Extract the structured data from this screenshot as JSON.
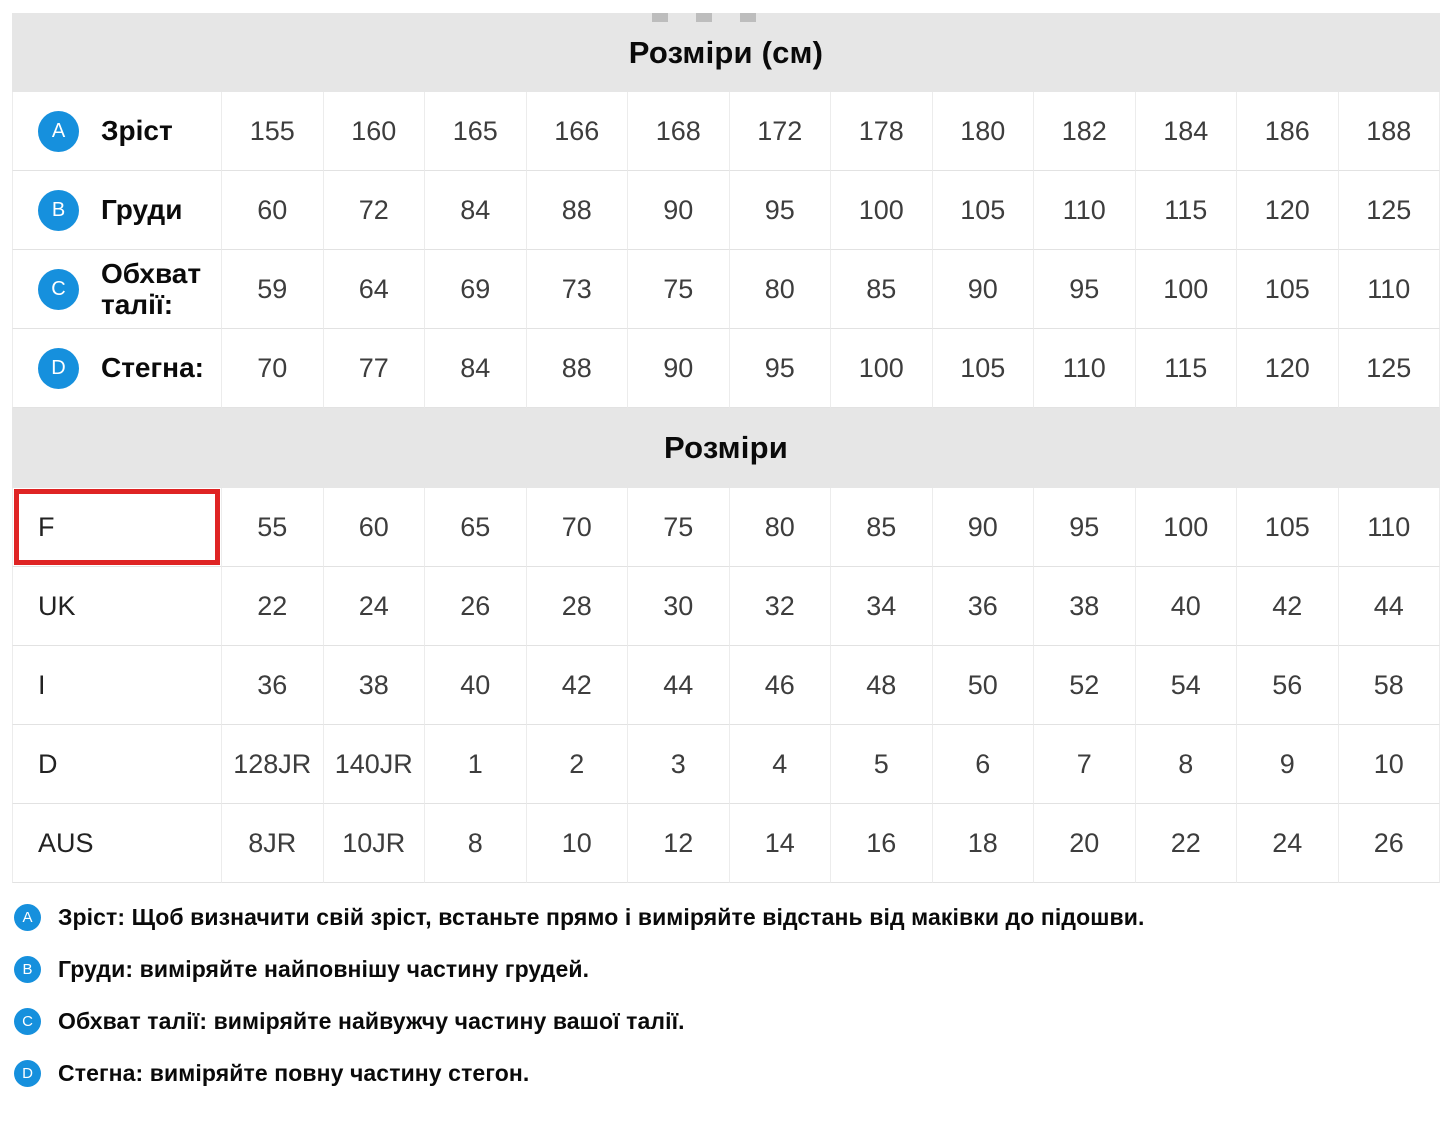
{
  "colors": {
    "badge_blue": "#1690dd",
    "highlight_red": "#df2424",
    "header_bg": "#e6e6e6",
    "grid_line": "#e2e2e2",
    "grid_line_v": "#ececec",
    "num_color": "#3d3d3d",
    "label_color": "#0b0b0b"
  },
  "tables": [
    {
      "title": "Розміри (см)",
      "rows": [
        {
          "badge": "A",
          "label": "Зріст",
          "values": [
            "155",
            "160",
            "165",
            "166",
            "168",
            "172",
            "178",
            "180",
            "182",
            "184",
            "186",
            "188"
          ]
        },
        {
          "badge": "B",
          "label": "Груди",
          "values": [
            "60",
            "72",
            "84",
            "88",
            "90",
            "95",
            "100",
            "105",
            "110",
            "115",
            "120",
            "125"
          ]
        },
        {
          "badge": "C",
          "label": "Обхват талії:",
          "values": [
            "59",
            "64",
            "69",
            "73",
            "75",
            "80",
            "85",
            "90",
            "95",
            "100",
            "105",
            "110"
          ]
        },
        {
          "badge": "D",
          "label": "Стегна:",
          "values": [
            "70",
            "77",
            "84",
            "88",
            "90",
            "95",
            "100",
            "105",
            "110",
            "115",
            "120",
            "125"
          ]
        }
      ]
    },
    {
      "title": "Розміри",
      "rows": [
        {
          "label": "F",
          "highlighted": true,
          "values": [
            "55",
            "60",
            "65",
            "70",
            "75",
            "80",
            "85",
            "90",
            "95",
            "100",
            "105",
            "110"
          ]
        },
        {
          "label": "UK",
          "values": [
            "22",
            "24",
            "26",
            "28",
            "30",
            "32",
            "34",
            "36",
            "38",
            "40",
            "42",
            "44"
          ]
        },
        {
          "label": "I",
          "values": [
            "36",
            "38",
            "40",
            "42",
            "44",
            "46",
            "48",
            "50",
            "52",
            "54",
            "56",
            "58"
          ]
        },
        {
          "label": "D",
          "values": [
            "128JR",
            "140JR",
            "1",
            "2",
            "3",
            "4",
            "5",
            "6",
            "7",
            "8",
            "9",
            "10"
          ]
        },
        {
          "label": "AUS",
          "values": [
            "8JR",
            "10JR",
            "8",
            "10",
            "12",
            "14",
            "16",
            "18",
            "20",
            "22",
            "24",
            "26"
          ]
        }
      ]
    }
  ],
  "notes": [
    {
      "badge": "A",
      "text": "Зріст: Щоб визначити свій зріст, встаньте прямо і виміряйте відстань від маківки до підошви."
    },
    {
      "badge": "B",
      "text": "Груди: виміряйте найповнішу частину грудей."
    },
    {
      "badge": "C",
      "text": "Обхват талії: виміряйте найвужчу частину вашої талії."
    },
    {
      "badge": "D",
      "text": "Стегна: виміряйте повну частину стегон."
    }
  ]
}
